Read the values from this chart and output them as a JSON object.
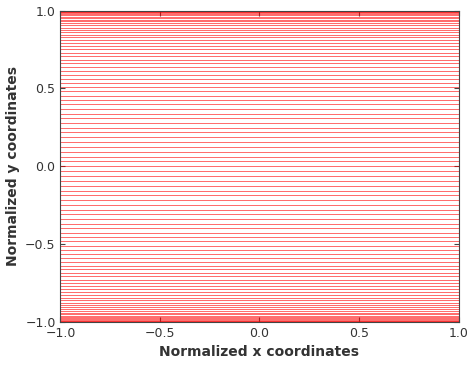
{
  "title": "",
  "xlabel": "Normalized x coordinates",
  "ylabel": "Normalized y coordinates",
  "xlim": [
    -1,
    1
  ],
  "ylim": [
    -1,
    1
  ],
  "xticks": [
    -1,
    -0.5,
    0,
    0.5,
    1
  ],
  "yticks": [
    -1,
    -0.5,
    0,
    0.5,
    1
  ],
  "line_color": "#FF0000",
  "line_alpha": 0.35,
  "line_width": 0.7,
  "n_lines": 200,
  "n_points": 500,
  "background_color": "#FFFFFF",
  "label_color": "#333333",
  "label_fontsize": 10,
  "tick_fontsize": 9,
  "tick_color": "#444444"
}
